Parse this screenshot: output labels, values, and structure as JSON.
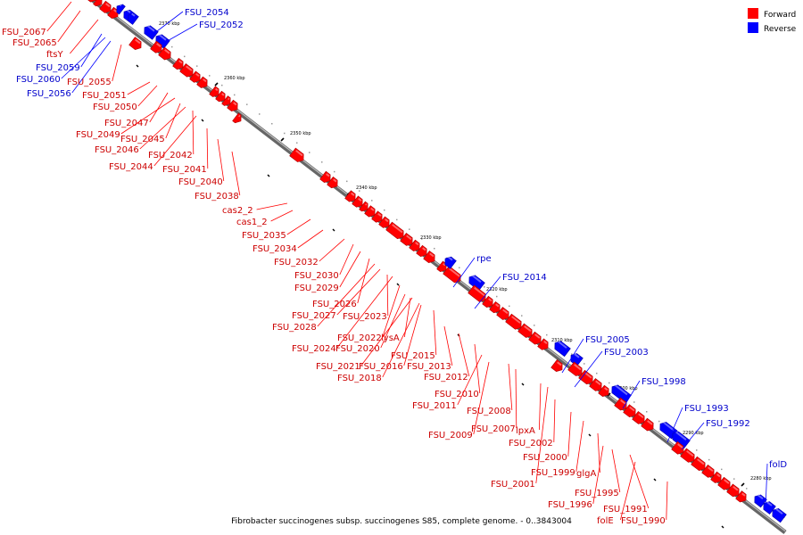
{
  "caption": "Fibrobacter succinogenes subsp. succinogenes S85, complete genome. - 0..3843004",
  "legend": [
    {
      "label": "Forward",
      "color": "#ff0000"
    },
    {
      "label": "Reverse",
      "color": "#0000ff"
    }
  ],
  "colors": {
    "forward": "#ff0000",
    "reverse": "#0000ff",
    "forward_label": "#cc0000",
    "reverse_label": "#0000cc",
    "backbone": "#888888"
  },
  "ticks": [
    "2370 kbp",
    "2360 kbp",
    "2350 kbp",
    "2340 kbp",
    "2330 kbp",
    "2320 kbp",
    "2310 kbp",
    "2300 kbp",
    "2290 kbp",
    "2280 kbp"
  ],
  "labels": [
    {
      "text": "FSU_2067",
      "strand": "forward"
    },
    {
      "text": "FSU_2065",
      "strand": "forward"
    },
    {
      "text": "ftsY",
      "strand": "forward"
    },
    {
      "text": "FSU_2059",
      "strand": "reverse"
    },
    {
      "text": "FSU_2060",
      "strand": "reverse"
    },
    {
      "text": "FSU_2056",
      "strand": "reverse"
    },
    {
      "text": "FSU_2055",
      "strand": "forward"
    },
    {
      "text": "FSU_2054",
      "strand": "reverse"
    },
    {
      "text": "FSU_2052",
      "strand": "reverse"
    },
    {
      "text": "FSU_2051",
      "strand": "forward"
    },
    {
      "text": "FSU_2050",
      "strand": "forward"
    },
    {
      "text": "FSU_2047",
      "strand": "forward"
    },
    {
      "text": "FSU_2049",
      "strand": "forward"
    },
    {
      "text": "FSU_2045",
      "strand": "forward"
    },
    {
      "text": "FSU_2046",
      "strand": "forward"
    },
    {
      "text": "FSU_2042",
      "strand": "forward"
    },
    {
      "text": "FSU_2044",
      "strand": "forward"
    },
    {
      "text": "FSU_2041",
      "strand": "forward"
    },
    {
      "text": "FSU_2040",
      "strand": "forward"
    },
    {
      "text": "FSU_2038",
      "strand": "forward"
    },
    {
      "text": "cas2_2",
      "strand": "forward"
    },
    {
      "text": "cas1_2",
      "strand": "forward"
    },
    {
      "text": "FSU_2035",
      "strand": "forward"
    },
    {
      "text": "FSU_2034",
      "strand": "forward"
    },
    {
      "text": "FSU_2032",
      "strand": "forward"
    },
    {
      "text": "FSU_2030",
      "strand": "forward"
    },
    {
      "text": "FSU_2029",
      "strand": "forward"
    },
    {
      "text": "FSU_2026",
      "strand": "forward"
    },
    {
      "text": "FSU_2027",
      "strand": "forward"
    },
    {
      "text": "FSU_2023",
      "strand": "forward"
    },
    {
      "text": "FSU_2028",
      "strand": "forward"
    },
    {
      "text": "FSU_2022",
      "strand": "forward"
    },
    {
      "text": "lysA",
      "strand": "forward"
    },
    {
      "text": "FSU_2024",
      "strand": "forward"
    },
    {
      "text": "FSU_2020",
      "strand": "forward"
    },
    {
      "text": "FSU_2015",
      "strand": "forward"
    },
    {
      "text": "FSU_2021",
      "strand": "forward"
    },
    {
      "text": "FSU_2016",
      "strand": "forward"
    },
    {
      "text": "FSU_2013",
      "strand": "forward"
    },
    {
      "text": "FSU_2018",
      "strand": "forward"
    },
    {
      "text": "FSU_2012",
      "strand": "forward"
    },
    {
      "text": "FSU_2010",
      "strand": "forward"
    },
    {
      "text": "FSU_2011",
      "strand": "forward"
    },
    {
      "text": "FSU_2008",
      "strand": "forward"
    },
    {
      "text": "FSU_2007",
      "strand": "forward"
    },
    {
      "text": "lpxA",
      "strand": "forward"
    },
    {
      "text": "FSU_2009",
      "strand": "forward"
    },
    {
      "text": "FSU_2002",
      "strand": "forward"
    },
    {
      "text": "FSU_2000",
      "strand": "forward"
    },
    {
      "text": "FSU_1999",
      "strand": "forward"
    },
    {
      "text": "glgA",
      "strand": "forward"
    },
    {
      "text": "FSU_2001",
      "strand": "forward"
    },
    {
      "text": "FSU_1995",
      "strand": "forward"
    },
    {
      "text": "FSU_1996",
      "strand": "forward"
    },
    {
      "text": "FSU_1991",
      "strand": "forward"
    },
    {
      "text": "folE",
      "strand": "forward"
    },
    {
      "text": "FSU_1990",
      "strand": "forward"
    },
    {
      "text": "rpe",
      "strand": "reverse"
    },
    {
      "text": "FSU_2014",
      "strand": "reverse"
    },
    {
      "text": "FSU_2005",
      "strand": "reverse"
    },
    {
      "text": "FSU_2003",
      "strand": "reverse"
    },
    {
      "text": "FSU_1998",
      "strand": "reverse"
    },
    {
      "text": "FSU_1993",
      "strand": "reverse"
    },
    {
      "text": "FSU_1992",
      "strand": "reverse"
    },
    {
      "text": "folD",
      "strand": "reverse"
    }
  ]
}
